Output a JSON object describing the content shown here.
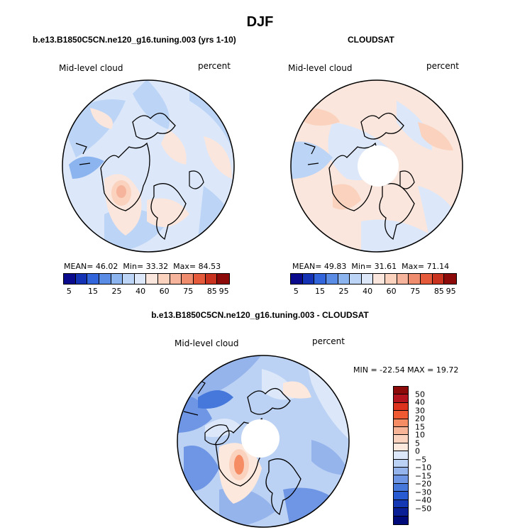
{
  "figure_title": "DJF",
  "panels": {
    "model": {
      "title": "b.e13.B1850C5CN.ne120_g16.tuning.003 (yrs 1-10)",
      "left_label": "Mid-level cloud",
      "right_label": "percent",
      "mean_label": "MEAN=",
      "mean": "46.02",
      "min_label": "Min=",
      "min": "33.32",
      "max_label": "Max=",
      "max": "84.53",
      "colorbar_ticks": [
        "5",
        "15",
        "25",
        "40",
        "60",
        "75",
        "85",
        "95"
      ]
    },
    "obs": {
      "title": "CLOUDSAT",
      "left_label": "Mid-level cloud",
      "right_label": "percent",
      "mean_label": "MEAN=",
      "mean": "49.83",
      "min_label": "Min=",
      "min": "31.61",
      "max_label": "Max=",
      "max": "71.14",
      "colorbar_ticks": [
        "5",
        "15",
        "25",
        "40",
        "60",
        "75",
        "85",
        "95"
      ]
    },
    "diff": {
      "title": "b.e13.B1850C5CN.ne120_g16.tuning.003 - CLOUDSAT",
      "left_label": "Mid-level cloud",
      "right_label": "percent",
      "minmax_text": "MIN = -22.54  MAX =  19.72",
      "colorbar_ticks": [
        "50",
        "40",
        "30",
        "20",
        "15",
        "10",
        "5",
        "0",
        "−5",
        "−10",
        "−15",
        "−20",
        "−30",
        "−40",
        "−50"
      ]
    }
  },
  "colors": {
    "abs_scale": [
      "#0a0a8c",
      "#1432b4",
      "#3264dc",
      "#5a8ce6",
      "#8cb4ee",
      "#bcd4f6",
      "#dce8fa",
      "#fae6dc",
      "#fad2be",
      "#f5b49b",
      "#f08c6e",
      "#e65a3c",
      "#c8321e",
      "#8c0a0a"
    ],
    "diff_scale": [
      "#8c0a0a",
      "#b4141e",
      "#dc321e",
      "#f05a32",
      "#f58c64",
      "#f8b496",
      "#fad2be",
      "#fce8dc",
      "#dce8fa",
      "#bcd2f4",
      "#96b4ec",
      "#6e96e4",
      "#4678dc",
      "#285ad2",
      "#1438b4",
      "#0a1e96",
      "#000a78"
    ]
  }
}
